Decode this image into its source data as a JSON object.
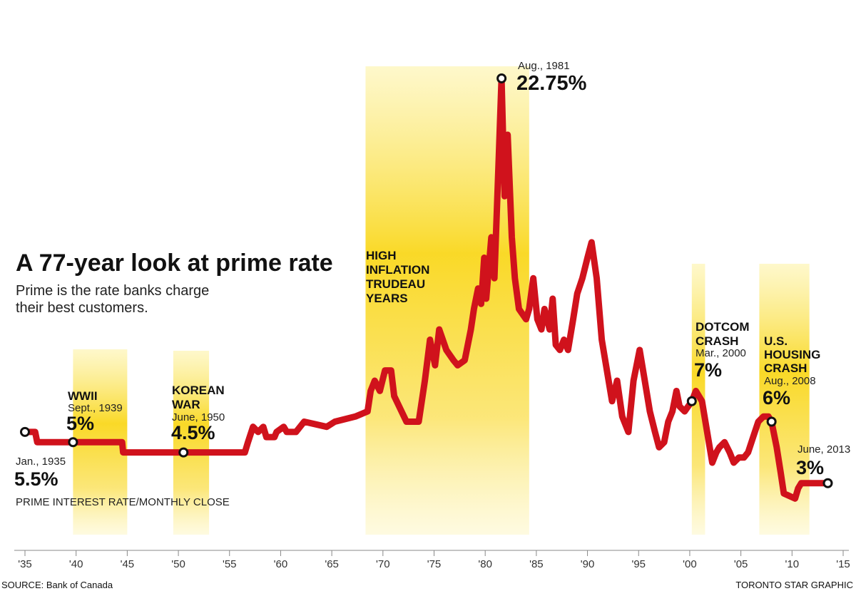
{
  "title": "A 77-year look at prime rate",
  "subtitle_lines": [
    "Prime is the rate banks charge",
    "their best customers."
  ],
  "series_label": "PRIME INTEREST RATE/MONTHLY CLOSE",
  "source": "SOURCE: Bank of Canada",
  "credit": "TORONTO STAR GRAPHIC",
  "colors": {
    "line": "#d0121c",
    "band": "#f9d71c",
    "band_light": "#fdf2a6",
    "marker_fill": "#ffffff",
    "marker_stroke": "#111111"
  },
  "chart_data": {
    "type": "line",
    "xlabel": "",
    "ylabel": "",
    "xlim": [
      1935,
      2015
    ],
    "ylim": [
      0,
      24
    ],
    "grid": false,
    "x_ticks": [
      1935,
      1940,
      1945,
      1950,
      1955,
      1960,
      1965,
      1970,
      1975,
      1980,
      1985,
      1990,
      1995,
      2000,
      2005,
      2010,
      2015
    ],
    "x_tick_labels": [
      "'35",
      "'40",
      "'45",
      "'50",
      "'55",
      "'60",
      "'65",
      "'70",
      "'75",
      "'80",
      "'85",
      "'90",
      "'95",
      "'00",
      "'05",
      "'10",
      "'15"
    ],
    "series": [
      {
        "points": [
          [
            1935.0,
            5.5
          ],
          [
            1936.0,
            5.5
          ],
          [
            1936.2,
            5.0
          ],
          [
            1939.7,
            5.0
          ],
          [
            1944.5,
            5.0
          ],
          [
            1944.6,
            4.5
          ],
          [
            1950.5,
            4.5
          ],
          [
            1956.5,
            4.5
          ],
          [
            1956.8,
            5.0
          ],
          [
            1957.3,
            5.75
          ],
          [
            1957.8,
            5.5
          ],
          [
            1958.3,
            5.75
          ],
          [
            1958.6,
            5.25
          ],
          [
            1959.4,
            5.25
          ],
          [
            1959.6,
            5.5
          ],
          [
            1960.3,
            5.75
          ],
          [
            1960.6,
            5.5
          ],
          [
            1961.5,
            5.5
          ],
          [
            1962.3,
            6.0
          ],
          [
            1964.5,
            5.75
          ],
          [
            1965.3,
            6.0
          ],
          [
            1967.3,
            6.25
          ],
          [
            1968.5,
            6.5
          ],
          [
            1968.8,
            7.5
          ],
          [
            1969.2,
            8.0
          ],
          [
            1969.7,
            7.5
          ],
          [
            1970.2,
            8.5
          ],
          [
            1970.8,
            8.5
          ],
          [
            1971.1,
            7.25
          ],
          [
            1972.3,
            6.0
          ],
          [
            1973.5,
            6.0
          ],
          [
            1974.1,
            8.0
          ],
          [
            1974.6,
            10.0
          ],
          [
            1975.1,
            8.75
          ],
          [
            1975.5,
            10.5
          ],
          [
            1976.2,
            9.5
          ],
          [
            1976.9,
            9.0
          ],
          [
            1977.3,
            8.75
          ],
          [
            1978.0,
            9.0
          ],
          [
            1978.6,
            10.5
          ],
          [
            1978.9,
            11.5
          ],
          [
            1979.3,
            12.5
          ],
          [
            1979.6,
            11.75
          ],
          [
            1979.9,
            14.0
          ],
          [
            1980.1,
            12.0
          ],
          [
            1980.6,
            15.0
          ],
          [
            1980.9,
            13.0
          ],
          [
            1981.3,
            18.5
          ],
          [
            1981.6,
            22.75
          ],
          [
            1981.9,
            17.0
          ],
          [
            1982.2,
            20.0
          ],
          [
            1982.6,
            15.0
          ],
          [
            1982.9,
            13.0
          ],
          [
            1983.3,
            11.5
          ],
          [
            1984.0,
            11.0
          ],
          [
            1984.3,
            11.5
          ],
          [
            1984.7,
            13.0
          ],
          [
            1985.1,
            11.0
          ],
          [
            1985.5,
            10.5
          ],
          [
            1985.8,
            11.5
          ],
          [
            1986.3,
            10.5
          ],
          [
            1986.6,
            12.0
          ],
          [
            1986.9,
            9.75
          ],
          [
            1987.3,
            9.5
          ],
          [
            1987.7,
            10.0
          ],
          [
            1988.1,
            9.5
          ],
          [
            1988.6,
            11.0
          ],
          [
            1989.0,
            12.25
          ],
          [
            1989.5,
            13.0
          ],
          [
            1990.0,
            14.0
          ],
          [
            1990.4,
            14.75
          ],
          [
            1990.9,
            13.0
          ],
          [
            1991.4,
            10.0
          ],
          [
            1991.9,
            8.5
          ],
          [
            1992.4,
            7.0
          ],
          [
            1992.9,
            8.0
          ],
          [
            1993.4,
            6.25
          ],
          [
            1994.0,
            5.5
          ],
          [
            1994.5,
            8.0
          ],
          [
            1995.1,
            9.5
          ],
          [
            1995.6,
            8.0
          ],
          [
            1996.1,
            6.5
          ],
          [
            1996.6,
            5.5
          ],
          [
            1997.0,
            4.75
          ],
          [
            1997.5,
            5.0
          ],
          [
            1997.9,
            6.0
          ],
          [
            1998.3,
            6.5
          ],
          [
            1998.7,
            7.5
          ],
          [
            1999.0,
            6.75
          ],
          [
            1999.5,
            6.5
          ],
          [
            2000.2,
            7.0
          ],
          [
            2000.6,
            7.5
          ],
          [
            2001.2,
            7.0
          ],
          [
            2001.7,
            5.5
          ],
          [
            2002.2,
            4.0
          ],
          [
            2002.6,
            4.5
          ],
          [
            2002.9,
            4.75
          ],
          [
            2003.4,
            5.0
          ],
          [
            2003.9,
            4.5
          ],
          [
            2004.3,
            4.0
          ],
          [
            2004.8,
            4.25
          ],
          [
            2005.3,
            4.25
          ],
          [
            2005.7,
            4.5
          ],
          [
            2006.2,
            5.25
          ],
          [
            2006.7,
            6.0
          ],
          [
            2007.2,
            6.25
          ],
          [
            2007.7,
            6.25
          ],
          [
            2008.0,
            6.0
          ],
          [
            2008.5,
            4.75
          ],
          [
            2008.9,
            3.5
          ],
          [
            2009.2,
            2.5
          ],
          [
            2010.3,
            2.25
          ],
          [
            2010.6,
            2.75
          ],
          [
            2010.9,
            3.0
          ],
          [
            2013.5,
            3.0
          ]
        ]
      }
    ],
    "shaded_periods": [
      {
        "start": 1939.7,
        "end": 1945.0
      },
      {
        "start": 1949.5,
        "end": 1953.0
      },
      {
        "start": 1968.3,
        "end": 1984.3
      },
      {
        "start": 2000.2,
        "end": 2001.5
      },
      {
        "start": 2006.8,
        "end": 2011.7
      }
    ],
    "annotations": [
      {
        "x": 1935.0,
        "y": 5.5,
        "date": "Jan., 1935",
        "value": "5.5%"
      },
      {
        "x": 1939.7,
        "y": 5.0,
        "label_lines": [
          "WWII"
        ],
        "date": "Sept., 1939",
        "value": "5%"
      },
      {
        "x": 1950.5,
        "y": 4.5,
        "label_lines": [
          "KOREAN",
          "WAR"
        ],
        "date": "June, 1950",
        "value": "4.5%"
      },
      {
        "x": 1981.6,
        "y": 22.75,
        "date": "Aug., 1981",
        "value": "22.75%"
      },
      {
        "label_lines": [
          "HIGH",
          "INFLATION",
          "TRUDEAU",
          "YEARS"
        ]
      },
      {
        "x": 2000.2,
        "y": 7.0,
        "label_lines": [
          "DOTCOM",
          "CRASH"
        ],
        "date": "Mar., 2000",
        "value": "7%"
      },
      {
        "x": 2008.0,
        "y": 6.0,
        "label_lines": [
          "U.S.",
          "HOUSING",
          "CRASH"
        ],
        "date": "Aug., 2008",
        "value": "6%"
      },
      {
        "x": 2013.5,
        "y": 3.0,
        "date": "June, 2013",
        "value": "3%"
      }
    ]
  }
}
